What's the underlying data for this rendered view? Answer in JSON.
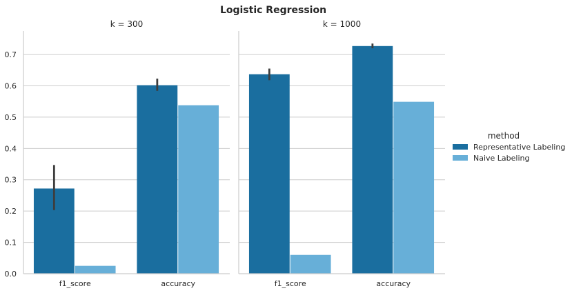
{
  "chart_data": {
    "type": "bar",
    "title": "Logistic Regression",
    "xlabel": "",
    "ylabel": "",
    "ylim": [
      0,
      0.775
    ],
    "yticks": [
      0.0,
      0.1,
      0.2,
      0.3,
      0.4,
      0.5,
      0.6,
      0.7
    ],
    "grid": true,
    "legend": {
      "title": "method",
      "placement": "right"
    },
    "categories": [
      "f1_score",
      "accuracy"
    ],
    "series": [
      {
        "name": "Representative Labeling",
        "color": "#1a6e9f"
      },
      {
        "name": "Naive Labeling",
        "color": "#67afd8"
      }
    ],
    "panels": [
      {
        "title": "k = 300",
        "values": [
          [
            0.272,
            0.602
          ],
          [
            0.025,
            0.538
          ]
        ],
        "errors": [
          [
            [
              0.203,
              0.347
            ],
            [
              0.584,
              0.623
            ]
          ],
          [
            null,
            null
          ]
        ]
      },
      {
        "title": "k = 1000",
        "values": [
          [
            0.637,
            0.727
          ],
          [
            0.06,
            0.549
          ]
        ],
        "errors": [
          [
            [
              0.618,
              0.655
            ],
            [
              0.72,
              0.735
            ]
          ],
          [
            null,
            null
          ]
        ]
      }
    ]
  }
}
